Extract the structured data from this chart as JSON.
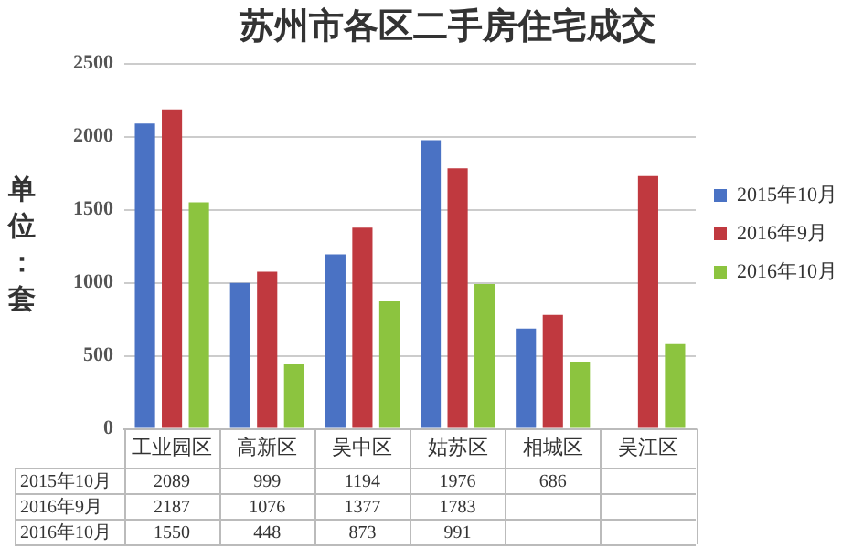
{
  "chart_data": {
    "type": "bar",
    "title": "苏州市各区二手房住宅成交",
    "ylabel": "单位：套",
    "categories": [
      "工业园区",
      "高新区",
      "吴中区",
      "姑苏区",
      "相城区",
      "吴江区"
    ],
    "series": [
      {
        "name": "2015年10月",
        "color": "#4a72c4",
        "values": [
          2089,
          999,
          1194,
          1976,
          686,
          null
        ],
        "value_labels": [
          "2089",
          "999",
          "1194",
          "1976",
          "686",
          null
        ]
      },
      {
        "name": "2016年9月",
        "color": "#c0393f",
        "values": [
          2187,
          1076,
          1377,
          1783,
          780,
          1730
        ],
        "value_labels": [
          "2187",
          "1076",
          "1377",
          "1783",
          null,
          null
        ]
      },
      {
        "name": "2016年10月",
        "color": "#8cc43f",
        "values": [
          1550,
          448,
          873,
          991,
          460,
          580
        ],
        "value_labels": [
          "1550",
          "448",
          "873",
          "991",
          null,
          null
        ]
      }
    ],
    "ylim": [
      0,
      2500
    ],
    "yticks": [
      0,
      500,
      1000,
      1500,
      2000,
      2500
    ],
    "grid": "y",
    "legend": "right"
  }
}
